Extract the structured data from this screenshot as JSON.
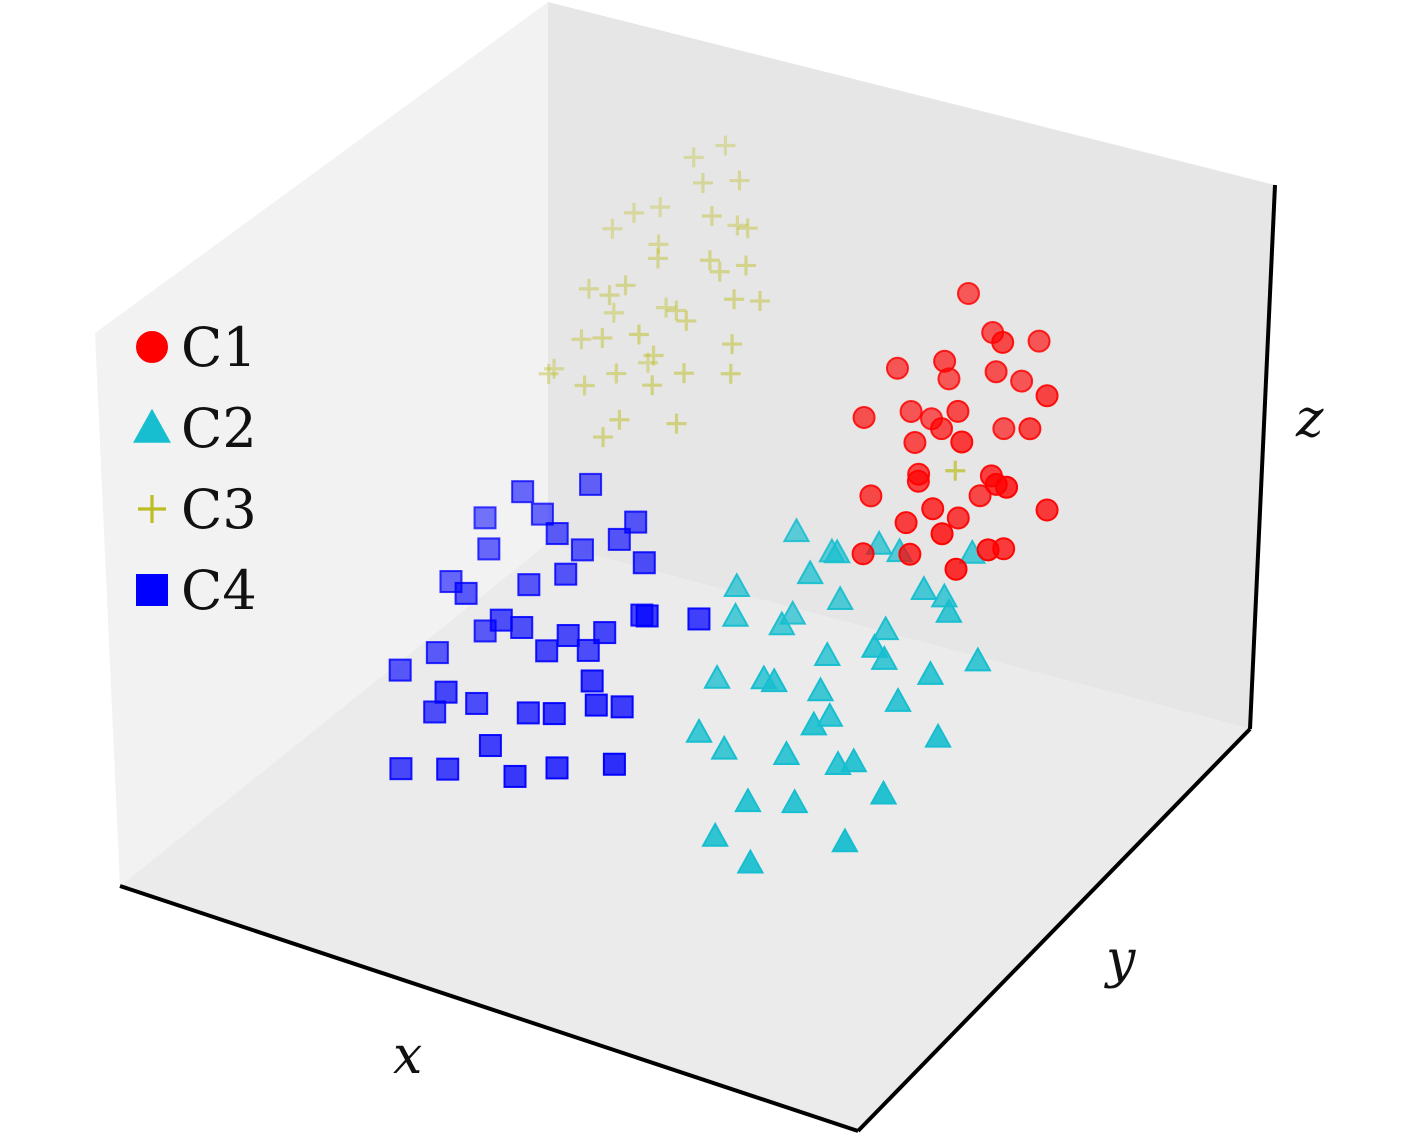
{
  "chart_data": {
    "type": "scatter",
    "dimensions": 3,
    "title": "",
    "xlabel": "x",
    "ylabel": "y",
    "zlabel": "z",
    "xlim": [
      -3.6,
      3.6
    ],
    "ylim": [
      -3.6,
      3.6
    ],
    "zlim": [
      -3.6,
      3.6
    ],
    "grid": false,
    "ticks": false,
    "legend": "left",
    "pane_colors": {
      "left": "#f2f2f2",
      "back": "#e6e6e6",
      "floor": "#ebebeb"
    },
    "series": [
      {
        "name": "C1",
        "marker": "circle",
        "color": "#ff0000",
        "points": [
          [
            1.5,
            1.6,
            1.8
          ],
          [
            1.9,
            2.3,
            1.2
          ],
          [
            1.6,
            1.4,
            1.1
          ],
          [
            1.4,
            1.3,
            0.9
          ],
          [
            1.8,
            2.0,
            1.5
          ],
          [
            2.0,
            1.7,
            2.2
          ],
          [
            1.7,
            1.5,
            1.3
          ],
          [
            1.2,
            0.9,
            0.4
          ],
          [
            2.2,
            1.9,
            1.0
          ],
          [
            1.5,
            1.2,
            0.6
          ],
          [
            1.3,
            1.8,
            0.8
          ],
          [
            2.0,
            1.0,
            1.4
          ],
          [
            1.6,
            0.8,
            0.3
          ],
          [
            1.9,
            1.2,
            0.2
          ],
          [
            2.4,
            1.8,
            1.6
          ],
          [
            1.7,
            2.1,
            1.9
          ],
          [
            1.1,
            1.5,
            1.6
          ],
          [
            2.1,
            1.4,
            0.7
          ],
          [
            1.8,
            0.9,
            0.5
          ],
          [
            2.3,
            1.1,
            0.9
          ],
          [
            1.4,
            1.9,
            1.3
          ],
          [
            1.0,
            1.1,
            1.2
          ],
          [
            2.5,
            0.9,
            1.1
          ],
          [
            2.6,
            1.5,
            0.4
          ],
          [
            1.9,
            1.6,
            0.2
          ],
          [
            2.2,
            0.6,
            0.1
          ],
          [
            1.2,
            1.6,
            1.0
          ],
          [
            2.4,
            0.8,
            0.3
          ],
          [
            1.7,
            0.7,
            0.0
          ],
          [
            1.3,
            0.6,
            -0.1
          ],
          [
            2.0,
            2.4,
            1.7
          ],
          [
            1.5,
            2.0,
            2.4
          ],
          [
            2.3,
            1.3,
            -0.1
          ],
          [
            1.6,
            1.0,
            0.7
          ],
          [
            2.1,
            0.5,
            0.6
          ],
          [
            1.8,
            2.2,
            0.6
          ]
        ]
      },
      {
        "name": "C2",
        "marker": "triangle",
        "color": "#17becf",
        "points": [
          [
            1.0,
            -0.6,
            -1.0
          ],
          [
            1.4,
            -0.3,
            -1.2
          ],
          [
            1.8,
            0.1,
            -0.9
          ],
          [
            0.6,
            -0.4,
            -0.5
          ],
          [
            1.2,
            0.4,
            -0.6
          ],
          [
            2.0,
            -0.8,
            -1.5
          ],
          [
            0.9,
            0.8,
            -0.4
          ],
          [
            1.6,
            -1.1,
            -2.0
          ],
          [
            2.3,
            0.0,
            -0.8
          ],
          [
            0.7,
            -1.2,
            -1.4
          ],
          [
            1.1,
            -1.6,
            -2.3
          ],
          [
            1.9,
            0.6,
            -0.3
          ],
          [
            2.4,
            -1.0,
            -1.6
          ],
          [
            1.5,
            0.9,
            -0.2
          ],
          [
            0.8,
            -0.9,
            -1.8
          ],
          [
            2.1,
            -0.2,
            -1.1
          ],
          [
            1.3,
            -1.4,
            -1.9
          ],
          [
            1.7,
            0.3,
            -0.7
          ],
          [
            2.5,
            0.5,
            -0.9
          ],
          [
            0.5,
            -0.2,
            -0.3
          ],
          [
            1.0,
            0.2,
            -0.2
          ],
          [
            1.6,
            -0.5,
            -1.3
          ],
          [
            2.2,
            -1.3,
            -2.1
          ],
          [
            0.9,
            -0.1,
            -0.7
          ],
          [
            1.4,
            0.7,
            0.0
          ],
          [
            1.8,
            -0.7,
            -1.7
          ],
          [
            1.2,
            -0.8,
            -0.8
          ],
          [
            2.6,
            -0.4,
            -1.2
          ],
          [
            0.7,
            0.5,
            0.0
          ],
          [
            1.5,
            -1.7,
            -2.4
          ],
          [
            2.0,
            0.8,
            -0.5
          ],
          [
            1.1,
            0.5,
            -0.1
          ],
          [
            1.9,
            -0.3,
            -0.4
          ],
          [
            0.6,
            -0.7,
            -1.1
          ],
          [
            1.3,
            0.0,
            -1.0
          ],
          [
            2.3,
            0.3,
            -0.2
          ],
          [
            1.7,
            -1.0,
            -1.0
          ],
          [
            0.8,
            0.3,
            -0.9
          ],
          [
            2.1,
            1.1,
            -0.1
          ],
          [
            1.4,
            -0.9,
            -1.6
          ]
        ]
      },
      {
        "name": "C3",
        "marker": "plus",
        "color": "#bcbd22",
        "points": [
          [
            -1.3,
            1.6,
            1.9
          ],
          [
            -1.0,
            2.0,
            2.3
          ],
          [
            -1.6,
            1.3,
            1.5
          ],
          [
            -0.8,
            1.8,
            1.8
          ],
          [
            -1.2,
            2.2,
            2.5
          ],
          [
            -1.5,
            1.0,
            1.2
          ],
          [
            -0.9,
            1.4,
            1.4
          ],
          [
            -1.7,
            1.9,
            2.1
          ],
          [
            -1.1,
            1.2,
            1.0
          ],
          [
            -0.6,
            1.7,
            1.6
          ],
          [
            -1.4,
            2.4,
            2.6
          ],
          [
            -1.9,
            1.5,
            1.3
          ],
          [
            -1.0,
            1.0,
            0.8
          ],
          [
            -0.7,
            2.1,
            2.2
          ],
          [
            -1.3,
            1.8,
            1.1
          ],
          [
            -1.6,
            0.9,
            0.6
          ],
          [
            -0.5,
            1.5,
            1.2
          ],
          [
            -1.8,
            1.2,
            0.9
          ],
          [
            -1.2,
            0.8,
            0.4
          ],
          [
            -0.8,
            1.2,
            0.9
          ],
          [
            -1.5,
            2.0,
            1.7
          ],
          [
            -2.0,
            1.0,
            0.5
          ],
          [
            -1.1,
            1.6,
            1.3
          ],
          [
            -0.9,
            2.3,
            2.0
          ],
          [
            -1.4,
            1.1,
            0.7
          ],
          [
            -0.6,
            1.9,
            1.9
          ],
          [
            -1.7,
            1.6,
            1.0
          ],
          [
            -1.0,
            2.5,
            2.4
          ],
          [
            -1.3,
            0.7,
            0.2
          ],
          [
            -0.4,
            1.3,
            1.0
          ],
          [
            -1.9,
            1.9,
            1.8
          ],
          [
            -0.7,
            0.9,
            0.5
          ],
          [
            -1.5,
            1.4,
            1.6
          ],
          [
            -1.2,
            2.6,
            2.7
          ],
          [
            -0.8,
            1.6,
            2.1
          ],
          [
            -1.6,
            2.2,
            2.0
          ],
          [
            -2.1,
            1.3,
            0.3
          ],
          [
            -1.1,
            0.9,
            1.5
          ],
          [
            -0.5,
            2.0,
            1.4
          ],
          [
            -1.4,
            1.7,
            0.4
          ],
          [
            1.9,
            1.1,
            0.9
          ]
        ]
      },
      {
        "name": "C4",
        "marker": "square",
        "color": "#0000ff",
        "points": [
          [
            -0.8,
            -1.2,
            -1.0
          ],
          [
            -1.2,
            -0.8,
            -0.6
          ],
          [
            -0.5,
            -1.6,
            -1.4
          ],
          [
            -1.5,
            -1.0,
            -1.2
          ],
          [
            -0.9,
            -0.4,
            -0.3
          ],
          [
            -1.3,
            -1.5,
            -1.7
          ],
          [
            -0.4,
            -0.9,
            -0.8
          ],
          [
            -1.7,
            -0.6,
            -0.5
          ],
          [
            -1.0,
            -1.8,
            -1.9
          ],
          [
            -0.6,
            -0.3,
            -0.1
          ],
          [
            -1.4,
            -0.2,
            -0.2
          ],
          [
            -0.3,
            -1.3,
            -1.1
          ],
          [
            -1.8,
            -1.3,
            -1.4
          ],
          [
            -1.1,
            -1.1,
            -0.9
          ],
          [
            -0.7,
            -1.9,
            -2.1
          ],
          [
            -1.6,
            -1.7,
            -1.8
          ],
          [
            -0.2,
            -0.6,
            -0.7
          ],
          [
            -1.9,
            -0.9,
            -0.8
          ],
          [
            -0.9,
            -0.7,
            -0.4
          ],
          [
            -1.3,
            -2.0,
            -2.2
          ],
          [
            -0.5,
            -0.2,
            0.1
          ],
          [
            -1.1,
            -0.5,
            -0.1
          ],
          [
            -0.1,
            -1.1,
            -1.5
          ],
          [
            -2.0,
            -1.6,
            -1.5
          ],
          [
            -0.8,
            -1.5,
            -1.6
          ],
          [
            -1.5,
            -0.4,
            0.2
          ],
          [
            -0.4,
            -1.7,
            -2.0
          ],
          [
            -1.2,
            -1.3,
            -0.7
          ],
          [
            -0.6,
            -0.8,
            -1.2
          ],
          [
            -1.7,
            -2.1,
            -2.3
          ],
          [
            -0.3,
            -0.4,
            -0.2
          ],
          [
            -1.0,
            -0.1,
            0.3
          ],
          [
            0.0,
            -0.9,
            -0.4
          ],
          [
            -1.4,
            -1.9,
            -1.3
          ],
          [
            -0.7,
            -1.0,
            -0.9
          ],
          [
            -1.9,
            -0.3,
            -0.4
          ],
          [
            0.3,
            -0.5,
            -0.6
          ],
          [
            -0.2,
            -1.4,
            -1.3
          ],
          [
            -1.6,
            -1.2,
            -0.6
          ],
          [
            0.1,
            -1.6,
            -1.8
          ]
        ]
      }
    ]
  }
}
